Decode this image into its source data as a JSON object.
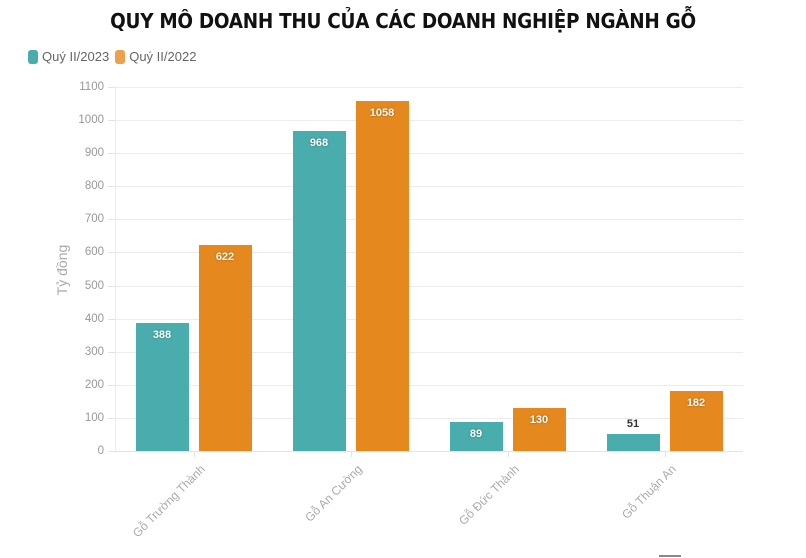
{
  "title": "QUY MÔ DOANH THU CỦA CÁC DOANH NGHIỆP NGÀNH GỖ",
  "legend": [
    {
      "label": "Quý II/2023",
      "color": "#4aadad"
    },
    {
      "label": "Quý II/2022",
      "color": "#e5891e"
    }
  ],
  "y_axis_label": "Tỷ đồng",
  "y_ticks": [
    "0",
    "100",
    "200",
    "300",
    "400",
    "500",
    "600",
    "700",
    "800",
    "900",
    "1000",
    "1100"
  ],
  "categories": [
    "Gỗ Trường Thành",
    "Gỗ An Cường",
    "Gỗ Đức Thành",
    "Gỗ Thuận An"
  ],
  "bar_labels": {
    "s0": [
      "388",
      "968",
      "89",
      "51"
    ],
    "s1": [
      "622",
      "1058",
      "130",
      "182"
    ]
  },
  "chart_data": {
    "type": "bar",
    "title": "QUY MÔ DOANH THU CỦA CÁC DOANH NGHIỆP NGÀNH GỖ",
    "categories": [
      "Gỗ Trường Thành",
      "Gỗ An Cường",
      "Gỗ Đức Thành",
      "Gỗ Thuận An"
    ],
    "series": [
      {
        "name": "Quý II/2023",
        "color": "#4aadad",
        "values": [
          388,
          968,
          89,
          51
        ]
      },
      {
        "name": "Quý II/2022",
        "color": "#e5891e",
        "values": [
          622,
          1058,
          130,
          182
        ]
      }
    ],
    "xlabel": "",
    "ylabel": "Tỷ đồng",
    "ylim": [
      0,
      1100
    ],
    "yticks": [
      0,
      100,
      200,
      300,
      400,
      500,
      600,
      700,
      800,
      900,
      1000,
      1100
    ],
    "grid": true,
    "legend_position": "top-left",
    "data_labels": true
  }
}
